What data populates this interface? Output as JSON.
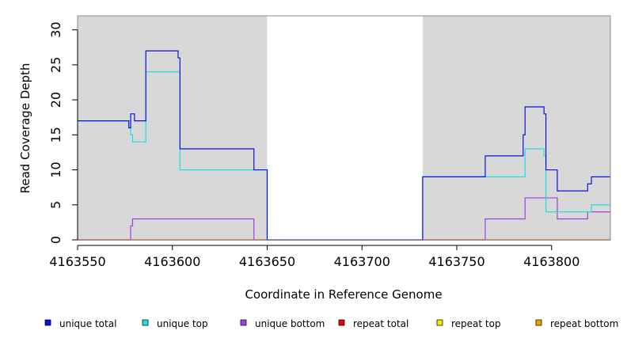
{
  "chart_data": {
    "type": "line",
    "title": "",
    "xlabel": "Coordinate in Reference Genome",
    "ylabel": "Read Coverage Depth",
    "xlim": [
      4163550,
      4163831
    ],
    "ylim": [
      0,
      32
    ],
    "xticks": [
      4163550,
      4163600,
      4163650,
      4163700,
      4163750,
      4163800
    ],
    "yticks": [
      0,
      5,
      10,
      15,
      20,
      25,
      30
    ],
    "grid": false,
    "legend_position": "bottom",
    "shaded_regions": [
      {
        "x0": 4163550,
        "x1": 4163650,
        "color": "#d8d8d8"
      },
      {
        "x0": 4163732,
        "x1": 4163831,
        "color": "#d8d8d8"
      }
    ],
    "series": [
      {
        "name": "unique total",
        "color": "#1010dd",
        "points": [
          [
            4163550,
            17
          ],
          [
            4163577,
            17
          ],
          [
            4163577,
            16
          ],
          [
            4163578,
            16
          ],
          [
            4163578,
            18
          ],
          [
            4163580,
            18
          ],
          [
            4163580,
            17
          ],
          [
            4163586,
            17
          ],
          [
            4163586,
            27
          ],
          [
            4163603,
            27
          ],
          [
            4163603,
            26
          ],
          [
            4163604,
            26
          ],
          [
            4163604,
            13
          ],
          [
            4163643,
            13
          ],
          [
            4163643,
            10
          ],
          [
            4163650,
            10
          ],
          [
            4163650,
            0
          ],
          [
            4163732,
            0
          ],
          [
            4163732,
            9
          ],
          [
            4163765,
            9
          ],
          [
            4163765,
            12
          ],
          [
            4163785,
            12
          ],
          [
            4163785,
            15
          ],
          [
            4163786,
            15
          ],
          [
            4163786,
            19
          ],
          [
            4163796,
            19
          ],
          [
            4163796,
            18
          ],
          [
            4163797,
            18
          ],
          [
            4163797,
            10
          ],
          [
            4163803,
            10
          ],
          [
            4163803,
            7
          ],
          [
            4163819,
            7
          ],
          [
            4163819,
            8
          ],
          [
            4163821,
            8
          ],
          [
            4163821,
            9
          ],
          [
            4163831,
            9
          ]
        ]
      },
      {
        "name": "unique top",
        "color": "#22dddd",
        "points": [
          [
            4163550,
            17
          ],
          [
            4163578,
            17
          ],
          [
            4163578,
            15
          ],
          [
            4163579,
            15
          ],
          [
            4163579,
            14
          ],
          [
            4163586,
            14
          ],
          [
            4163586,
            24
          ],
          [
            4163604,
            24
          ],
          [
            4163604,
            10
          ],
          [
            4163650,
            10
          ],
          [
            4163650,
            0
          ],
          [
            4163732,
            0
          ],
          [
            4163732,
            9
          ],
          [
            4163786,
            9
          ],
          [
            4163786,
            13
          ],
          [
            4163796,
            13
          ],
          [
            4163796,
            12
          ],
          [
            4163797,
            12
          ],
          [
            4163797,
            4
          ],
          [
            4163821,
            4
          ],
          [
            4163821,
            5
          ],
          [
            4163831,
            5
          ]
        ]
      },
      {
        "name": "unique bottom",
        "color": "#a040e0",
        "points": [
          [
            4163550,
            0
          ],
          [
            4163578,
            0
          ],
          [
            4163578,
            2
          ],
          [
            4163579,
            2
          ],
          [
            4163579,
            3
          ],
          [
            4163643,
            3
          ],
          [
            4163643,
            0
          ],
          [
            4163765,
            0
          ],
          [
            4163765,
            3
          ],
          [
            4163786,
            3
          ],
          [
            4163786,
            6
          ],
          [
            4163803,
            6
          ],
          [
            4163803,
            3
          ],
          [
            4163819,
            3
          ],
          [
            4163819,
            4
          ],
          [
            4163831,
            4
          ]
        ]
      },
      {
        "name": "repeat total",
        "color": "#ee0000",
        "points": [
          [
            4163550,
            0
          ],
          [
            4163831,
            0
          ]
        ]
      },
      {
        "name": "repeat top",
        "color": "#eeee00",
        "points": [
          [
            4163550,
            0
          ],
          [
            4163831,
            0
          ]
        ]
      },
      {
        "name": "repeat bottom",
        "color": "#f0a000",
        "points": [
          [
            4163550,
            0
          ],
          [
            4163831,
            0
          ]
        ]
      }
    ]
  }
}
